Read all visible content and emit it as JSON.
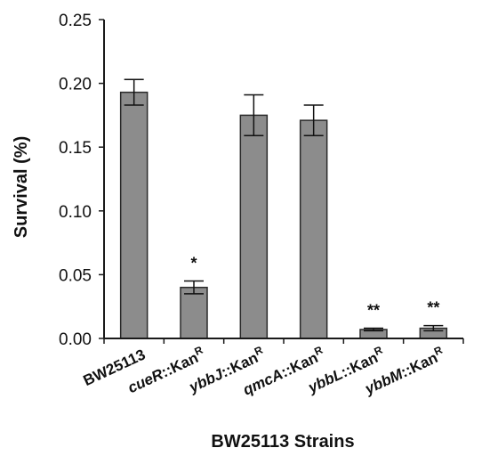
{
  "chart_data": {
    "type": "bar",
    "title": "",
    "xlabel": "BW25113 Strains",
    "ylabel": "Survival (%)",
    "ylim": [
      0,
      0.25
    ],
    "yticks": [
      "0.00",
      "0.05",
      "0.10",
      "0.15",
      "0.20",
      "0.25"
    ],
    "grid": false,
    "categories": [
      {
        "name": "BW25113",
        "base": "BW25113",
        "suffix": "",
        "sup": ""
      },
      {
        "name": "cueR::KanR",
        "base": "cueR",
        "suffix": "::Kan",
        "sup": "R"
      },
      {
        "name": "ybbJ::KanR",
        "base": "ybbJ",
        "suffix": "::Kan",
        "sup": "R"
      },
      {
        "name": "qmcA::KanR",
        "base": "qmcA",
        "suffix": "::Kan",
        "sup": "R"
      },
      {
        "name": "ybbL::KanR",
        "base": "ybbL",
        "suffix": "::Kan",
        "sup": "R"
      },
      {
        "name": "ybbM::KanR",
        "base": "ybbM",
        "suffix": "::Kan",
        "sup": "R"
      }
    ],
    "values": [
      0.193,
      0.04,
      0.175,
      0.171,
      0.007,
      0.008
    ],
    "errors": [
      0.01,
      0.005,
      0.016,
      0.012,
      0.001,
      0.002
    ],
    "significance": [
      "",
      "*",
      "",
      "",
      "**",
      "**"
    ],
    "colors": {
      "bar_fill": "#8c8c8c",
      "bar_stroke": "#2a2a2a",
      "axis": "#1a1a1a"
    }
  }
}
